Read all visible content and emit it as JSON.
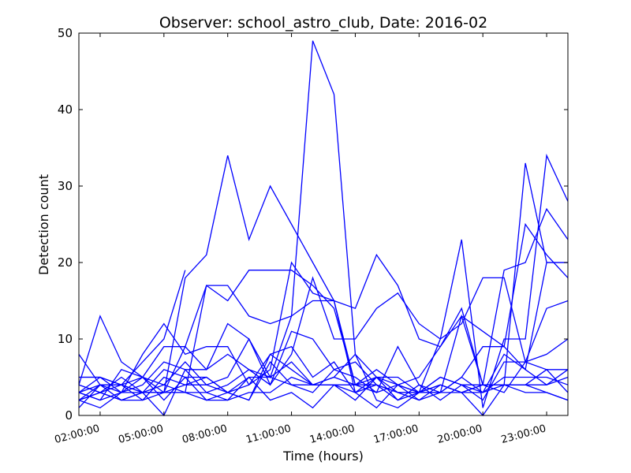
{
  "chart_data": {
    "type": "line",
    "title": "Observer: school_astro_club, Date: 2016-02",
    "xlabel": "Time (hours)",
    "ylabel": "Detection count",
    "x": [
      "01:00:00",
      "02:00:00",
      "03:00:00",
      "04:00:00",
      "05:00:00",
      "06:00:00",
      "07:00:00",
      "08:00:00",
      "09:00:00",
      "10:00:00",
      "11:00:00",
      "12:00:00",
      "13:00:00",
      "14:00:00",
      "15:00:00",
      "16:00:00",
      "17:00:00",
      "18:00:00",
      "19:00:00",
      "20:00:00",
      "21:00:00",
      "22:00:00",
      "23:00:00",
      "00:00:00"
    ],
    "xticks": [
      "02:00:00",
      "05:00:00",
      "08:00:00",
      "11:00:00",
      "14:00:00",
      "17:00:00",
      "20:00:00",
      "23:00:00"
    ],
    "yticks": [
      0,
      10,
      20,
      30,
      40,
      50
    ],
    "ylim": [
      0,
      50
    ],
    "grid": false,
    "line_color": "#0000ff",
    "series": [
      {
        "values": [
          8,
          4,
          4,
          7,
          10,
          19,
          null,
          null,
          null,
          null,
          null,
          null,
          null,
          null,
          null,
          null,
          null,
          null,
          null,
          null,
          null,
          null,
          null,
          null
        ]
      },
      {
        "values": [
          3,
          5,
          4,
          3,
          3,
          18,
          21,
          34,
          23,
          30,
          25,
          20,
          15,
          3,
          1,
          4,
          3,
          4,
          3,
          4,
          4,
          33,
          20,
          20
        ]
      },
      {
        "values": [
          3,
          4,
          4,
          3,
          3,
          3,
          17,
          17,
          13,
          12,
          13,
          49,
          42,
          8,
          2,
          1,
          3,
          10,
          23,
          1,
          10,
          10,
          34,
          28
        ]
      },
      {
        "values": [
          5,
          5,
          3,
          8,
          12,
          8,
          9,
          9,
          4,
          6,
          20,
          16,
          15,
          14,
          21,
          17,
          10,
          9,
          13,
          11,
          9,
          25,
          21,
          18
        ]
      },
      {
        "values": [
          4,
          13,
          7,
          5,
          3,
          9,
          17,
          15,
          19,
          19,
          19,
          17,
          14,
          4,
          3,
          4,
          5,
          9,
          14,
          4,
          19,
          20,
          27,
          23
        ]
      },
      {
        "values": [
          2,
          4,
          3,
          5,
          9,
          9,
          6,
          12,
          10,
          4,
          8,
          18,
          10,
          10,
          14,
          16,
          12,
          10,
          12,
          18,
          18,
          7,
          14,
          15
        ]
      },
      {
        "values": [
          3,
          2,
          6,
          5,
          4,
          7,
          4,
          5,
          10,
          5,
          13,
          15,
          15,
          4,
          5,
          3,
          2,
          3,
          5,
          9,
          9,
          6,
          20,
          20
        ]
      },
      {
        "values": [
          2,
          1,
          3,
          3,
          0,
          6,
          6,
          8,
          6,
          4,
          11,
          10,
          6,
          5,
          3,
          9,
          4,
          3,
          13,
          4,
          3,
          7,
          6,
          6
        ]
      },
      {
        "values": [
          4,
          3,
          2,
          3,
          3,
          4,
          4,
          3,
          2,
          8,
          9,
          5,
          7,
          3,
          5,
          2,
          3,
          5,
          4,
          2,
          7,
          7,
          8,
          10
        ]
      },
      {
        "values": [
          3,
          2,
          3,
          4,
          7,
          6,
          3,
          4,
          6,
          5,
          7,
          4,
          4,
          4,
          6,
          4,
          3,
          3,
          5,
          3,
          8,
          6,
          4,
          6
        ]
      },
      {
        "values": [
          2,
          3,
          5,
          3,
          6,
          5,
          5,
          3,
          4,
          8,
          6,
          4,
          5,
          8,
          5,
          5,
          3,
          4,
          3,
          4,
          4,
          4,
          4,
          5
        ]
      },
      {
        "values": [
          4,
          3,
          4,
          5,
          2,
          5,
          2,
          3,
          2,
          7,
          4,
          3,
          6,
          7,
          4,
          2,
          4,
          2,
          4,
          3,
          5,
          5,
          5,
          4
        ]
      },
      {
        "values": [
          1,
          4,
          2,
          3,
          4,
          3,
          3,
          2,
          5,
          2,
          3,
          1,
          4,
          2,
          5,
          4,
          2,
          4,
          3,
          0,
          4,
          4,
          3,
          2
        ]
      },
      {
        "values": [
          5,
          5,
          4,
          2,
          5,
          4,
          5,
          3,
          5,
          5,
          4,
          4,
          5,
          4,
          4,
          3,
          3,
          5,
          4,
          4,
          4,
          4,
          6,
          3
        ]
      },
      {
        "values": [
          2,
          3,
          2,
          2,
          3,
          3,
          2,
          2,
          3,
          3,
          5,
          4,
          4,
          3,
          4,
          3,
          3,
          3,
          3,
          3,
          4,
          3,
          3,
          2
        ]
      }
    ]
  }
}
